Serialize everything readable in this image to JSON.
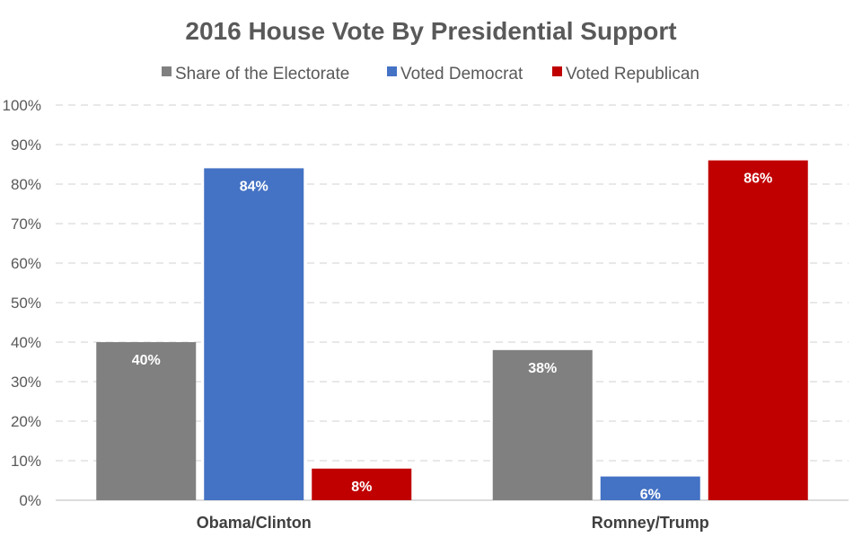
{
  "chart_data": {
    "type": "bar",
    "title": "2016 House Vote By Presidential Support",
    "xlabel": "",
    "ylabel": "",
    "ylim": [
      0,
      100
    ],
    "yticks": [
      "0%",
      "10%",
      "20%",
      "30%",
      "40%",
      "50%",
      "60%",
      "70%",
      "80%",
      "90%",
      "100%"
    ],
    "grid": true,
    "legend_position": "top",
    "categories": [
      "Obama/Clinton",
      "Romney/Trump"
    ],
    "series": [
      {
        "name": "Share of the Electorate",
        "color": "#808080",
        "values": [
          40,
          38
        ],
        "labels": [
          "40%",
          "38%"
        ]
      },
      {
        "name": "Voted Democrat",
        "color": "#4472C4",
        "values": [
          84,
          6
        ],
        "labels": [
          "84%",
          "6%"
        ]
      },
      {
        "name": "Voted Republican",
        "color": "#C00000",
        "values": [
          8,
          86
        ],
        "labels": [
          "8%",
          "86%"
        ]
      }
    ]
  }
}
